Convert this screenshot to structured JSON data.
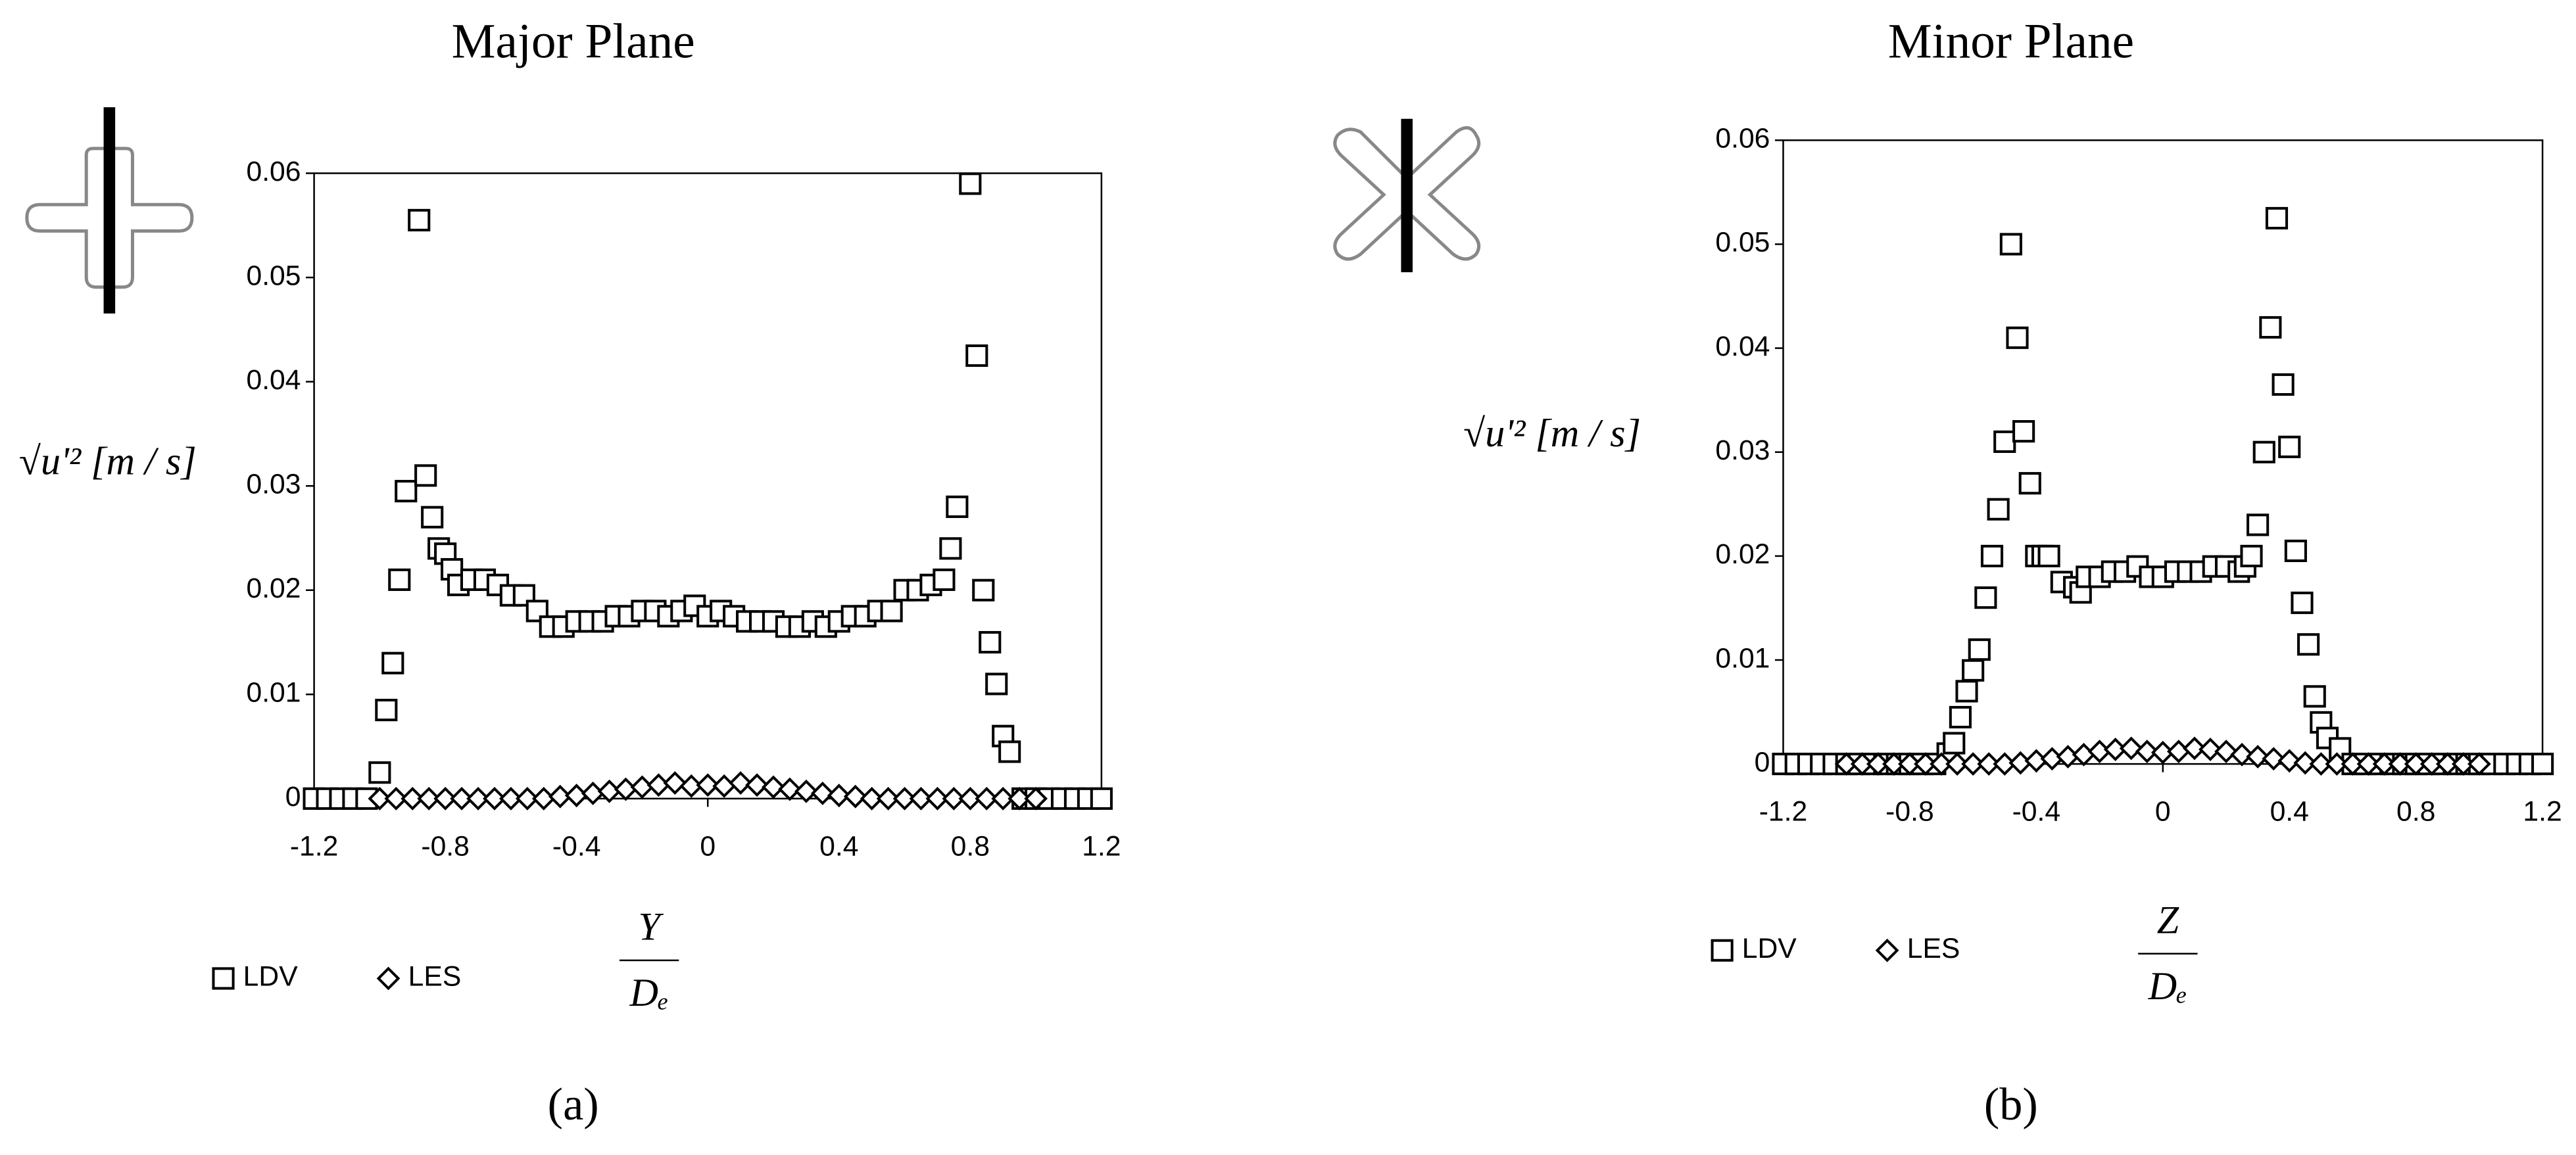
{
  "chart_data": [
    {
      "type": "scatter",
      "title": "Major Plane",
      "caption": "(a)",
      "y_label": "√u'² [m / s]",
      "x_label_numerator": "Y",
      "x_label_denominator": "Dₑ",
      "xlim": [
        -1.2,
        1.2
      ],
      "xticks": [
        -1.2,
        -0.8,
        -0.4,
        0,
        0.4,
        0.8,
        1.2
      ],
      "ylim": [
        0,
        0.06
      ],
      "yticks": [
        0,
        0.01,
        0.02,
        0.03,
        0.04,
        0.05,
        0.06
      ],
      "grid": false,
      "series": [
        {
          "name": "LDV",
          "marker": "square",
          "color": "#000000",
          "x": [
            -1.2,
            -1.16,
            -1.12,
            -1.08,
            -1.04,
            -1.0,
            -0.98,
            -0.96,
            -0.94,
            -0.92,
            -0.88,
            -0.86,
            -0.84,
            -0.82,
            -0.8,
            -0.78,
            -0.76,
            -0.72,
            -0.68,
            -0.64,
            -0.6,
            -0.56,
            -0.52,
            -0.48,
            -0.44,
            -0.4,
            -0.36,
            -0.32,
            -0.28,
            -0.24,
            -0.2,
            -0.16,
            -0.12,
            -0.08,
            -0.04,
            0,
            0.04,
            0.08,
            0.12,
            0.16,
            0.2,
            0.24,
            0.28,
            0.32,
            0.36,
            0.4,
            0.44,
            0.48,
            0.52,
            0.56,
            0.6,
            0.64,
            0.68,
            0.72,
            0.74,
            0.76,
            0.8,
            0.82,
            0.84,
            0.86,
            0.88,
            0.9,
            0.92,
            0.96,
            1.0,
            1.04,
            1.08,
            1.12,
            1.16,
            1.2
          ],
          "values": [
            0,
            0,
            0,
            0,
            0,
            0.0025,
            0.0085,
            0.013,
            0.021,
            0.0295,
            0.0555,
            0.031,
            0.027,
            0.024,
            0.0235,
            0.022,
            0.0205,
            0.021,
            0.021,
            0.0205,
            0.0195,
            0.0195,
            0.018,
            0.0165,
            0.0165,
            0.017,
            0.017,
            0.017,
            0.0175,
            0.0175,
            0.018,
            0.018,
            0.0175,
            0.018,
            0.0185,
            0.0175,
            0.018,
            0.0175,
            0.017,
            0.017,
            0.017,
            0.0165,
            0.0165,
            0.017,
            0.0165,
            0.017,
            0.0175,
            0.0175,
            0.018,
            0.018,
            0.02,
            0.02,
            0.0205,
            0.021,
            0.024,
            0.028,
            0.059,
            0.0425,
            0.02,
            0.015,
            0.011,
            0.006,
            0.0045,
            0,
            0,
            0,
            0,
            0,
            0,
            0
          ]
        },
        {
          "name": "LES",
          "marker": "diamond",
          "color": "#000000",
          "x": [
            -1.0,
            -0.95,
            -0.9,
            -0.85,
            -0.8,
            -0.75,
            -0.7,
            -0.65,
            -0.6,
            -0.55,
            -0.5,
            -0.45,
            -0.4,
            -0.35,
            -0.3,
            -0.25,
            -0.2,
            -0.15,
            -0.1,
            -0.05,
            0,
            0.05,
            0.1,
            0.15,
            0.2,
            0.25,
            0.3,
            0.35,
            0.4,
            0.45,
            0.5,
            0.55,
            0.6,
            0.65,
            0.7,
            0.75,
            0.8,
            0.85,
            0.9,
            0.95,
            1.0
          ],
          "values": [
            0,
            0,
            0,
            0,
            0,
            0,
            0,
            0,
            0,
            0,
            0,
            0.0002,
            0.0003,
            0.0005,
            0.0007,
            0.0009,
            0.0011,
            0.0013,
            0.0015,
            0.0012,
            0.0013,
            0.0012,
            0.0015,
            0.0013,
            0.0011,
            0.0009,
            0.0007,
            0.0005,
            0.0003,
            0.0002,
            0,
            0,
            0,
            0,
            0,
            0,
            0,
            0,
            0,
            0,
            0
          ]
        }
      ]
    },
    {
      "type": "scatter",
      "title": "Minor Plane",
      "caption": "(b)",
      "y_label": "√u'² [m / s]",
      "x_label_numerator": "Z",
      "x_label_denominator": "Dₑ",
      "xlim": [
        -1.2,
        1.2
      ],
      "xticks": [
        -1.2,
        -0.8,
        -0.4,
        0,
        0.4,
        0.8,
        1.2
      ],
      "ylim": [
        0,
        0.06
      ],
      "yticks": [
        0,
        0.01,
        0.02,
        0.03,
        0.04,
        0.05,
        0.06
      ],
      "grid": false,
      "series": [
        {
          "name": "LDV",
          "marker": "square",
          "color": "#000000",
          "x": [
            -1.2,
            -1.16,
            -1.12,
            -1.08,
            -1.04,
            -1.0,
            -0.96,
            -0.92,
            -0.88,
            -0.84,
            -0.8,
            -0.76,
            -0.72,
            -0.68,
            -0.66,
            -0.64,
            -0.62,
            -0.6,
            -0.58,
            -0.56,
            -0.54,
            -0.52,
            -0.5,
            -0.48,
            -0.46,
            -0.44,
            -0.42,
            -0.4,
            -0.38,
            -0.36,
            -0.32,
            -0.28,
            -0.26,
            -0.24,
            -0.2,
            -0.16,
            -0.12,
            -0.08,
            -0.04,
            0,
            0.04,
            0.08,
            0.12,
            0.16,
            0.2,
            0.24,
            0.26,
            0.28,
            0.3,
            0.32,
            0.34,
            0.36,
            0.38,
            0.4,
            0.42,
            0.44,
            0.46,
            0.48,
            0.5,
            0.52,
            0.56,
            0.6,
            0.64,
            0.68,
            0.72,
            0.76,
            0.8,
            0.84,
            0.88,
            0.92,
            0.96,
            1.0,
            1.04,
            1.08,
            1.12,
            1.16,
            1.2
          ],
          "values": [
            0,
            0,
            0,
            0,
            0,
            0,
            0,
            0,
            0,
            0,
            0,
            0,
            0,
            0.001,
            0.002,
            0.0045,
            0.007,
            0.009,
            0.011,
            0.016,
            0.02,
            0.0245,
            0.031,
            0.05,
            0.041,
            0.032,
            0.027,
            0.02,
            0.02,
            0.02,
            0.0175,
            0.017,
            0.0165,
            0.018,
            0.018,
            0.0185,
            0.0185,
            0.019,
            0.018,
            0.018,
            0.0185,
            0.0185,
            0.0185,
            0.019,
            0.019,
            0.0185,
            0.019,
            0.02,
            0.023,
            0.03,
            0.042,
            0.0525,
            0.0365,
            0.0305,
            0.0205,
            0.0155,
            0.0115,
            0.0065,
            0.004,
            0.0025,
            0.0015,
            0,
            0,
            0,
            0,
            0,
            0,
            0,
            0,
            0,
            0,
            0,
            0,
            0,
            0,
            0,
            0
          ]
        },
        {
          "name": "LES",
          "marker": "diamond",
          "color": "#000000",
          "x": [
            -1.0,
            -0.95,
            -0.9,
            -0.85,
            -0.8,
            -0.75,
            -0.7,
            -0.65,
            -0.6,
            -0.55,
            -0.5,
            -0.45,
            -0.4,
            -0.35,
            -0.3,
            -0.25,
            -0.2,
            -0.15,
            -0.1,
            -0.05,
            0,
            0.05,
            0.1,
            0.15,
            0.2,
            0.25,
            0.3,
            0.35,
            0.4,
            0.45,
            0.5,
            0.55,
            0.6,
            0.65,
            0.7,
            0.75,
            0.8,
            0.85,
            0.9,
            0.95,
            1.0
          ],
          "values": [
            0,
            0,
            0,
            0,
            0,
            0,
            0,
            0,
            0,
            0,
            0,
            0.0001,
            0.0003,
            0.0005,
            0.0007,
            0.0009,
            0.0012,
            0.0014,
            0.0015,
            0.0012,
            0.0011,
            0.0012,
            0.0015,
            0.0014,
            0.0012,
            0.0009,
            0.0007,
            0.0005,
            0.0003,
            0.0001,
            0,
            0,
            0,
            0,
            0,
            0,
            0,
            0,
            0,
            0,
            0
          ]
        }
      ]
    }
  ]
}
